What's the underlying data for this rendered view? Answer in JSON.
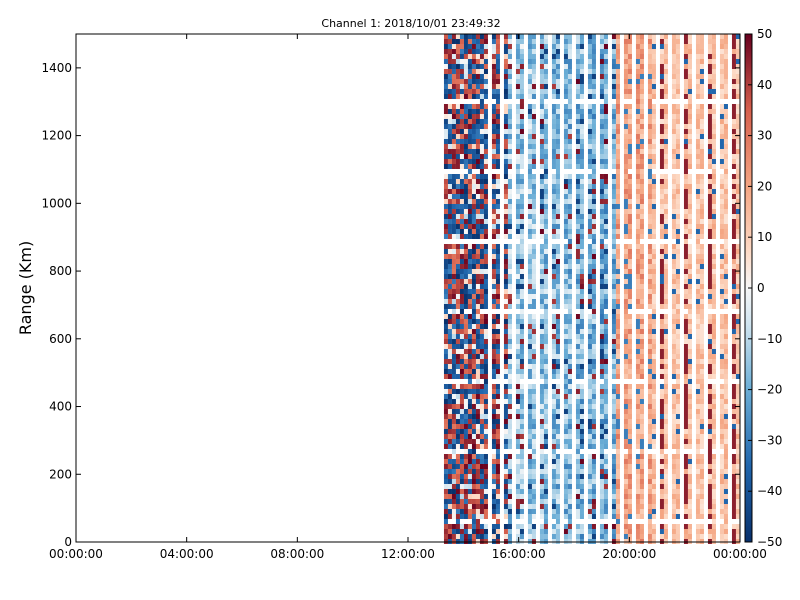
{
  "chart_data": {
    "type": "heatmap",
    "title": "Channel 1: 2018/10/01 23:49:32",
    "xlabel": "",
    "ylabel": "Range (Km)",
    "x_ticks": [
      "00:00:00",
      "04:00:00",
      "08:00:00",
      "12:00:00",
      "16:00:00",
      "20:00:00",
      "00:00:00"
    ],
    "x_tick_hours": [
      0,
      4,
      8,
      12,
      16,
      20,
      24
    ],
    "xlim_hours": [
      0,
      24
    ],
    "data_start_hour": 13.3,
    "y_ticks": [
      0,
      200,
      400,
      600,
      800,
      1000,
      1200,
      1400
    ],
    "ylim": [
      0,
      1500
    ],
    "colorbar": {
      "ticks": [
        50,
        40,
        30,
        20,
        10,
        0,
        -10,
        -20,
        -30,
        -40,
        -50
      ],
      "range": [
        -50,
        50
      ],
      "colormap": "RdBu_r"
    },
    "grid": false,
    "colors": {
      "low": "#08306b",
      "mid": "#f7f7f7",
      "high": "#67001f"
    }
  }
}
